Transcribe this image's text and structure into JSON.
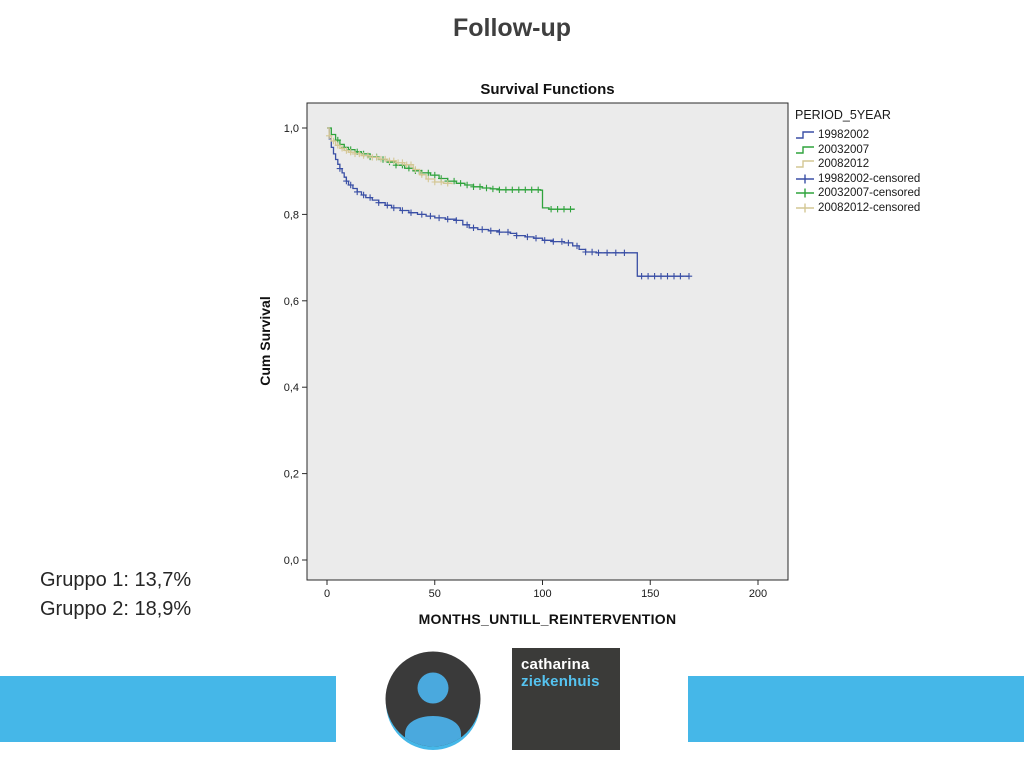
{
  "slide": {
    "title": "Follow-up"
  },
  "notes": {
    "line1": "Gruppo 1: 13,7%",
    "line2": "Gruppo 2: 18,9%"
  },
  "chart_data": {
    "type": "line",
    "subtype": "kaplan-meier-step",
    "title": "Survival Functions",
    "xlabel": "MONTHS_UNTILL_REINTERVENTION",
    "ylabel": "Cum Survival",
    "xlim": [
      -12,
      215
    ],
    "ylim": [
      -0.05,
      1.06
    ],
    "xticks": [
      0,
      50,
      100,
      150,
      200
    ],
    "yticks": [
      0,
      0.2,
      0.4,
      0.6,
      0.8,
      1.0
    ],
    "ytick_labels": [
      "0,0",
      "0,2",
      "0,4",
      "0,6",
      "0,8",
      "1,0"
    ],
    "grid": false,
    "plot_bg": "#ebebeb",
    "legend_title": "PERIOD_5YEAR",
    "legend_position": "right",
    "legend_items": [
      "19982002",
      "20032007",
      "20082012",
      "19982002-censored",
      "20032007-censored",
      "20082012-censored"
    ],
    "series": [
      {
        "name": "19982002",
        "color": "#3a4fa5",
        "steps": [
          [
            0,
            1.0
          ],
          [
            1,
            0.975
          ],
          [
            2,
            0.955
          ],
          [
            3,
            0.94
          ],
          [
            4,
            0.927
          ],
          [
            5,
            0.916
          ],
          [
            6,
            0.906
          ],
          [
            7,
            0.896
          ],
          [
            8,
            0.886
          ],
          [
            9,
            0.877
          ],
          [
            10,
            0.868
          ],
          [
            12,
            0.86
          ],
          [
            14,
            0.852
          ],
          [
            16,
            0.845
          ],
          [
            18,
            0.839
          ],
          [
            21,
            0.833
          ],
          [
            24,
            0.827
          ],
          [
            27,
            0.821
          ],
          [
            30,
            0.815
          ],
          [
            34,
            0.809
          ],
          [
            38,
            0.804
          ],
          [
            42,
            0.8
          ],
          [
            46,
            0.796
          ],
          [
            50,
            0.792
          ],
          [
            55,
            0.789
          ],
          [
            60,
            0.786
          ],
          [
            63,
            0.776
          ],
          [
            66,
            0.769
          ],
          [
            70,
            0.765
          ],
          [
            75,
            0.762
          ],
          [
            80,
            0.759
          ],
          [
            85,
            0.756
          ],
          [
            88,
            0.751
          ],
          [
            92,
            0.748
          ],
          [
            96,
            0.745
          ],
          [
            100,
            0.74
          ],
          [
            105,
            0.737
          ],
          [
            110,
            0.734
          ],
          [
            114,
            0.727
          ],
          [
            117,
            0.719
          ],
          [
            120,
            0.713
          ],
          [
            125,
            0.711
          ],
          [
            143,
            0.711
          ],
          [
            144,
            0.657
          ],
          [
            168,
            0.657
          ]
        ],
        "censored": [
          6,
          9,
          11,
          14,
          17,
          20,
          24,
          28,
          31,
          35,
          39,
          44,
          48,
          52,
          56,
          60,
          65,
          68,
          72,
          76,
          80,
          84,
          88,
          93,
          97,
          101,
          105,
          109,
          112,
          116,
          120,
          123,
          126,
          130,
          134,
          138,
          146,
          149,
          152,
          155,
          158,
          161,
          164,
          168
        ]
      },
      {
        "name": "20032007",
        "color": "#2fa33c",
        "steps": [
          [
            0,
            1.0
          ],
          [
            2,
            0.985
          ],
          [
            4,
            0.972
          ],
          [
            6,
            0.962
          ],
          [
            8,
            0.955
          ],
          [
            10,
            0.95
          ],
          [
            13,
            0.945
          ],
          [
            16,
            0.94
          ],
          [
            20,
            0.933
          ],
          [
            24,
            0.927
          ],
          [
            28,
            0.921
          ],
          [
            32,
            0.914
          ],
          [
            36,
            0.907
          ],
          [
            40,
            0.901
          ],
          [
            44,
            0.896
          ],
          [
            48,
            0.891
          ],
          [
            52,
            0.883
          ],
          [
            56,
            0.877
          ],
          [
            60,
            0.872
          ],
          [
            64,
            0.868
          ],
          [
            68,
            0.864
          ],
          [
            72,
            0.861
          ],
          [
            76,
            0.859
          ],
          [
            80,
            0.857
          ],
          [
            99,
            0.856
          ],
          [
            100,
            0.815
          ],
          [
            103,
            0.812
          ],
          [
            115,
            0.812
          ]
        ],
        "censored": [
          5,
          8,
          11,
          14,
          17,
          20,
          23,
          26,
          29,
          32,
          35,
          38,
          41,
          44,
          47,
          50,
          53,
          56,
          59,
          62,
          65,
          68,
          71,
          74,
          77,
          80,
          83,
          86,
          89,
          92,
          95,
          98,
          104,
          107,
          110,
          113
        ]
      },
      {
        "name": "20082012",
        "color": "#d4c794",
        "steps": [
          [
            0,
            1.0
          ],
          [
            1,
            0.982
          ],
          [
            2,
            0.97
          ],
          [
            4,
            0.96
          ],
          [
            6,
            0.953
          ],
          [
            8,
            0.948
          ],
          [
            10,
            0.944
          ],
          [
            13,
            0.94
          ],
          [
            16,
            0.936
          ],
          [
            20,
            0.932
          ],
          [
            24,
            0.928
          ],
          [
            28,
            0.924
          ],
          [
            32,
            0.92
          ],
          [
            36,
            0.915
          ],
          [
            40,
            0.904
          ],
          [
            43,
            0.892
          ],
          [
            46,
            0.882
          ],
          [
            50,
            0.875
          ],
          [
            54,
            0.872
          ],
          [
            58,
            0.87
          ]
        ],
        "censored": [
          1,
          3,
          5,
          7,
          9,
          11,
          13,
          15,
          17,
          19,
          21,
          23,
          25,
          27,
          29,
          31,
          33,
          35,
          37,
          39,
          41,
          44,
          47,
          50,
          53,
          56
        ]
      }
    ]
  },
  "footer": {
    "bar_color": "#45b7e8",
    "logo_square": {
      "line1": "catharina",
      "line2": "ziekenhuis",
      "bg": "#3b3b39",
      "line1_color": "#ffffff",
      "line2_color": "#55c3f0"
    },
    "avatar_logo": {
      "circle_color": "#3a3a3a",
      "person_color": "#4aa9de",
      "ring_color": "#45b7e8"
    }
  }
}
